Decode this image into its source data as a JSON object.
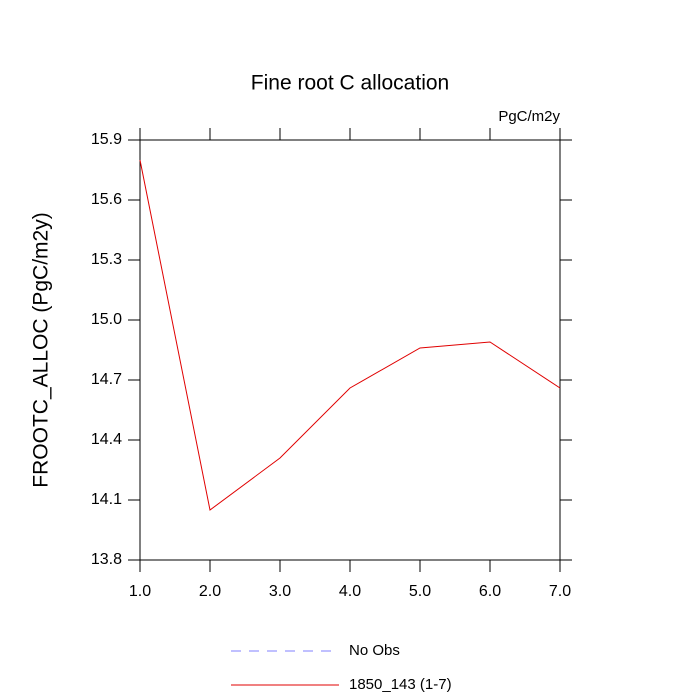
{
  "chart_data": {
    "type": "line",
    "title": "Fine root C allocation",
    "subtitle": "PgC/m2y",
    "y_label": "FROOTC_ALLOC  (PgC/m2y)",
    "x": [
      1,
      2,
      3,
      4,
      5,
      6,
      7
    ],
    "series": [
      {
        "name": "No Obs",
        "color": "#8080ff",
        "dashed": true,
        "values": [
          null,
          null,
          null,
          null,
          null,
          null,
          null
        ]
      },
      {
        "name": "1850_143 (1-7)",
        "color": "#e00000",
        "dashed": false,
        "values": [
          15.8,
          14.05,
          14.31,
          14.66,
          14.86,
          14.89,
          14.66
        ]
      }
    ],
    "xlim": [
      1,
      7
    ],
    "xticks": [
      {
        "value": 1,
        "label": "1.0"
      },
      {
        "value": 2,
        "label": "2.0"
      },
      {
        "value": 3,
        "label": "3.0"
      },
      {
        "value": 4,
        "label": "4.0"
      },
      {
        "value": 5,
        "label": "5.0"
      },
      {
        "value": 6,
        "label": "6.0"
      },
      {
        "value": 7,
        "label": "7.0"
      }
    ],
    "ylim": [
      13.8,
      15.9
    ],
    "yticks": [
      13.8,
      14.1,
      14.4,
      14.7,
      {
        "value": 15,
        "label": "15.0"
      },
      15.3,
      15.6,
      15.9
    ],
    "grid": false
  }
}
